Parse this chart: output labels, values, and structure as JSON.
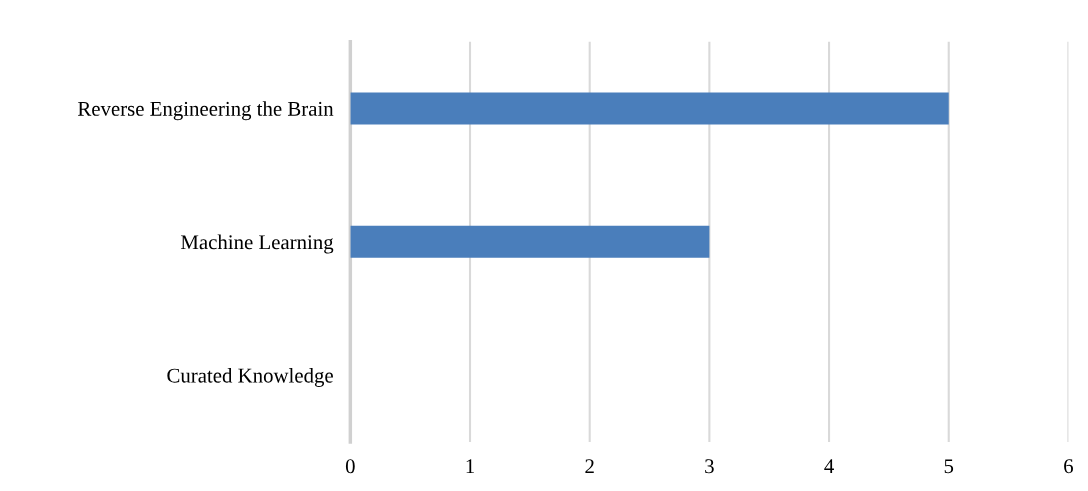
{
  "chart_data": {
    "type": "bar",
    "orientation": "horizontal",
    "categories": [
      "Reverse Engineering the Brain",
      "Machine Learning",
      "Curated Knowledge"
    ],
    "values": [
      5,
      3,
      0
    ],
    "color": "#4a7ebb",
    "xlim": [
      0,
      6
    ],
    "xticks": [
      0,
      1,
      2,
      3,
      4,
      5,
      6
    ],
    "grid": "x",
    "legend": false
  }
}
